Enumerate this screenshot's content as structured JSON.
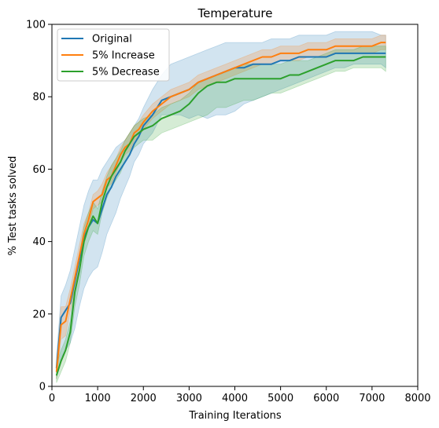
{
  "chart_data": {
    "type": "line",
    "title": "Temperature",
    "xlabel": "Training Iterations",
    "ylabel": "% Test tasks solved",
    "xlim": [
      0,
      8000
    ],
    "ylim": [
      0,
      100
    ],
    "xticks": [
      0,
      1000,
      2000,
      3000,
      4000,
      5000,
      6000,
      7000,
      8000
    ],
    "yticks": [
      0,
      20,
      40,
      60,
      80,
      100
    ],
    "grid": false,
    "legend_position": "top-left",
    "x": [
      100,
      200,
      300,
      400,
      500,
      600,
      700,
      800,
      900,
      1000,
      1100,
      1200,
      1300,
      1400,
      1500,
      1600,
      1700,
      1800,
      1900,
      2000,
      2200,
      2400,
      2600,
      2800,
      3000,
      3200,
      3400,
      3600,
      3800,
      4000,
      4200,
      4400,
      4600,
      4800,
      5000,
      5200,
      5400,
      5600,
      5800,
      6000,
      6200,
      6400,
      6600,
      6800,
      7000,
      7200,
      7300
    ],
    "series": [
      {
        "name": "Original",
        "color": "#1f77b4",
        "values": [
          5,
          19,
          21,
          23,
          29,
          35,
          41,
          44,
          46,
          45,
          49,
          53,
          55,
          58,
          60,
          62,
          64,
          67,
          69,
          72,
          75,
          79,
          80,
          81,
          82,
          84,
          85,
          86,
          87,
          88,
          88,
          89,
          89,
          89,
          90,
          90,
          91,
          91,
          91,
          91,
          92,
          92,
          92,
          92,
          92,
          92,
          92
        ],
        "lower": [
          2,
          8,
          10,
          12,
          16,
          22,
          27,
          30,
          32,
          33,
          37,
          42,
          45,
          48,
          52,
          55,
          58,
          62,
          64,
          67,
          70,
          75,
          75,
          75,
          74,
          75,
          74,
          75,
          75,
          76,
          78,
          79,
          80,
          81,
          82,
          83,
          84,
          85,
          86,
          87,
          88,
          88,
          89,
          89,
          89,
          89,
          88
        ],
        "upper": [
          8,
          25,
          28,
          32,
          38,
          44,
          50,
          54,
          57,
          57,
          60,
          62,
          64,
          66,
          67,
          68,
          70,
          72,
          74,
          77,
          82,
          86,
          89,
          90,
          91,
          92,
          93,
          94,
          95,
          95,
          95,
          95,
          95,
          96,
          96,
          96,
          97,
          97,
          97,
          97,
          98,
          98,
          98,
          98,
          98,
          97,
          97
        ]
      },
      {
        "name": "5% Increase",
        "color": "#ff7f0e",
        "values": [
          4,
          17,
          18,
          24,
          30,
          36,
          42,
          46,
          51,
          52,
          53,
          57,
          58,
          61,
          64,
          66,
          67,
          70,
          71,
          73,
          76,
          78,
          80,
          81,
          82,
          84,
          85,
          86,
          87,
          88,
          89,
          90,
          91,
          91,
          92,
          92,
          92,
          93,
          93,
          93,
          94,
          94,
          94,
          94,
          94,
          95,
          95
        ],
        "lower": [
          2,
          13,
          14,
          21,
          27,
          33,
          39,
          44,
          49,
          50,
          51,
          55,
          56,
          59,
          62,
          64,
          65,
          68,
          69,
          71,
          74,
          76,
          78,
          79,
          80,
          82,
          83,
          84,
          85,
          86,
          87,
          88,
          89,
          89,
          90,
          90,
          90,
          91,
          91,
          91,
          92,
          92,
          92,
          92,
          92,
          93,
          93
        ],
        "upper": [
          6,
          22,
          22,
          27,
          33,
          39,
          45,
          48,
          53,
          54,
          56,
          59,
          61,
          63,
          66,
          68,
          70,
          72,
          73,
          75,
          78,
          80,
          82,
          83,
          84,
          86,
          87,
          88,
          89,
          90,
          91,
          92,
          93,
          93,
          94,
          94,
          94,
          95,
          95,
          95,
          96,
          96,
          96,
          96,
          96,
          97,
          97
        ]
      },
      {
        "name": "5% Decrease",
        "color": "#2ca02c",
        "values": [
          3,
          7,
          10,
          15,
          26,
          32,
          40,
          44,
          47,
          45,
          51,
          55,
          58,
          60,
          62,
          65,
          67,
          69,
          70,
          71,
          72,
          74,
          75,
          76,
          78,
          81,
          83,
          84,
          84,
          85,
          85,
          85,
          85,
          85,
          85,
          86,
          86,
          87,
          88,
          89,
          90,
          90,
          90,
          91,
          91,
          91,
          91
        ],
        "lower": [
          1,
          4,
          7,
          12,
          22,
          28,
          36,
          40,
          43,
          42,
          48,
          52,
          55,
          57,
          59,
          62,
          64,
          66,
          67,
          68,
          68,
          70,
          71,
          72,
          73,
          74,
          75,
          77,
          77,
          78,
          79,
          79,
          80,
          81,
          81,
          82,
          83,
          84,
          85,
          86,
          87,
          87,
          88,
          88,
          88,
          88,
          87
        ],
        "upper": [
          6,
          10,
          13,
          18,
          30,
          36,
          44,
          48,
          51,
          49,
          54,
          58,
          61,
          63,
          65,
          68,
          70,
          72,
          73,
          74,
          75,
          77,
          78,
          79,
          81,
          84,
          85,
          86,
          87,
          88,
          89,
          89,
          89,
          89,
          89,
          90,
          90,
          90,
          91,
          92,
          93,
          93,
          93,
          94,
          94,
          94,
          94
        ]
      }
    ]
  }
}
